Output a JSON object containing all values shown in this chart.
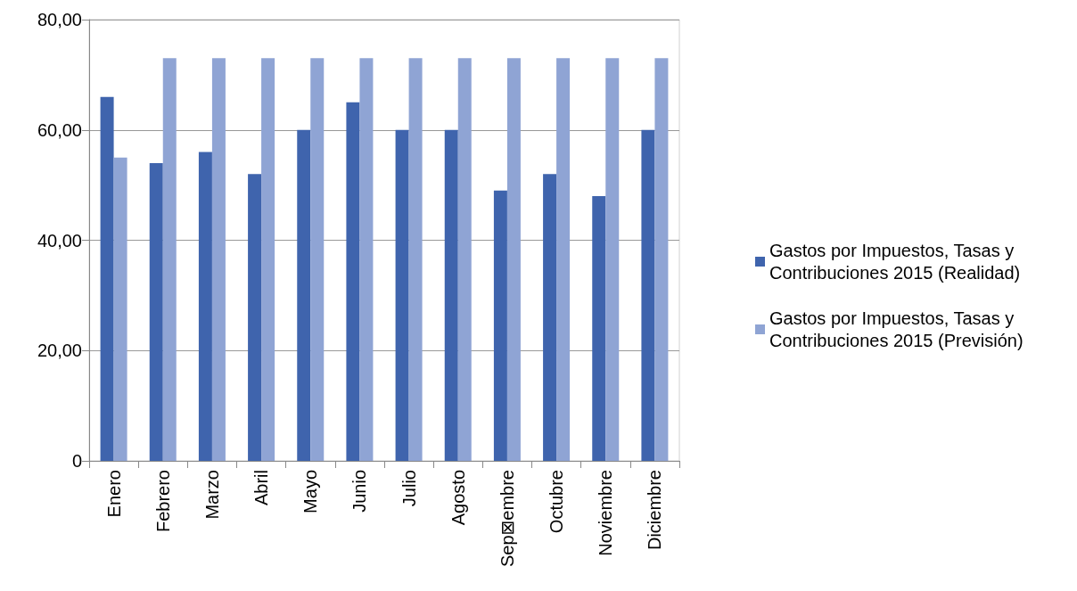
{
  "chart_data": {
    "type": "bar",
    "categories": [
      "Enero",
      "Febrero",
      "Marzo",
      "Abril",
      "Mayo",
      "Junio",
      "Julio",
      "Agosto",
      "Sep⊠embre",
      "Octubre",
      "Noviembre",
      "Diciembre"
    ],
    "series": [
      {
        "name": "Gastos por Impuestos, Tasas y Contribuciones 2015 (Realidad)",
        "color": "#3f64ad",
        "values": [
          66,
          54,
          56,
          52,
          60,
          65,
          60,
          60,
          49,
          52,
          48,
          60
        ]
      },
      {
        "name": "Gastos por Impuestos, Tasas y Contribuciones 2015 (Previsión)",
        "color": "#8fa4d4",
        "values": [
          55,
          73,
          73,
          73,
          73,
          73,
          73,
          73,
          73,
          73,
          73,
          73
        ]
      }
    ],
    "ylim": [
      0,
      80
    ],
    "yticks": [
      0,
      {
        "value": 20,
        "label": "20,00"
      },
      {
        "value": 40,
        "label": "40,00"
      },
      {
        "value": 60,
        "label": "60,00"
      },
      {
        "value": 80,
        "label": "80,00"
      }
    ],
    "grid": "y",
    "legend": "right"
  }
}
